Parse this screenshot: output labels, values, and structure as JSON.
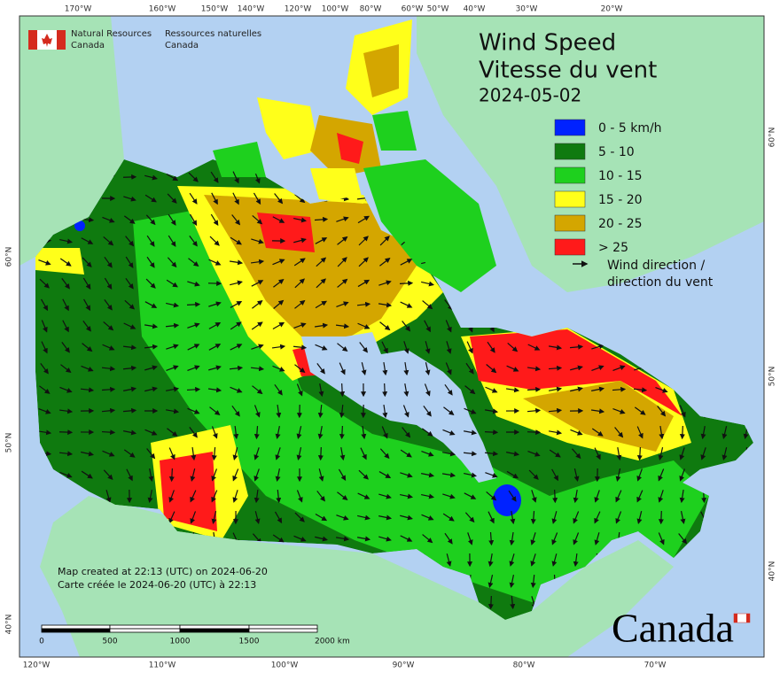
{
  "agency": {
    "en_line1": "Natural Resources",
    "en_line2": "Canada",
    "fr_line1": "Ressources naturelles",
    "fr_line2": "Canada"
  },
  "title": {
    "line1": "Wind Speed",
    "line2": "Vitesse du vent",
    "date": "2024-05-02"
  },
  "legend": {
    "items": [
      {
        "label": "0 - 5 km/h",
        "color": "#0022ff"
      },
      {
        "label": "5 - 10",
        "color": "#0f7a0f"
      },
      {
        "label": "10 - 15",
        "color": "#1ed01e"
      },
      {
        "label": "15 - 20",
        "color": "#ffff1a"
      },
      {
        "label": "20 - 25",
        "color": "#d4a600"
      },
      {
        "label": "> 25",
        "color": "#ff1a1a"
      }
    ],
    "arrow_label": [
      "Wind direction /",
      "direction du vent"
    ]
  },
  "footer": {
    "created_en": "Map created at 22:13 (UTC) on 2024-06-20",
    "created_fr": "Carte créée le 2024-06-20 (UTC) à 22:13"
  },
  "scale_bar": {
    "labels": [
      "0",
      "500",
      "1000",
      "1500",
      "2000 km"
    ]
  },
  "graticule": {
    "top": [
      "170°W",
      "160°W",
      "150°W",
      "140°W",
      "120°W",
      "100°W",
      "80°W",
      "60°W",
      "50°W",
      "40°W",
      "30°W",
      "20°W"
    ],
    "bottom": [
      "120°W",
      "110°W",
      "100°W",
      "90°W",
      "80°W",
      "70°W"
    ],
    "left": [
      "60°N",
      "50°N",
      "40°N"
    ],
    "right": [
      "60°N",
      "50°N",
      "40°N"
    ]
  },
  "wordmark": "Canada"
}
